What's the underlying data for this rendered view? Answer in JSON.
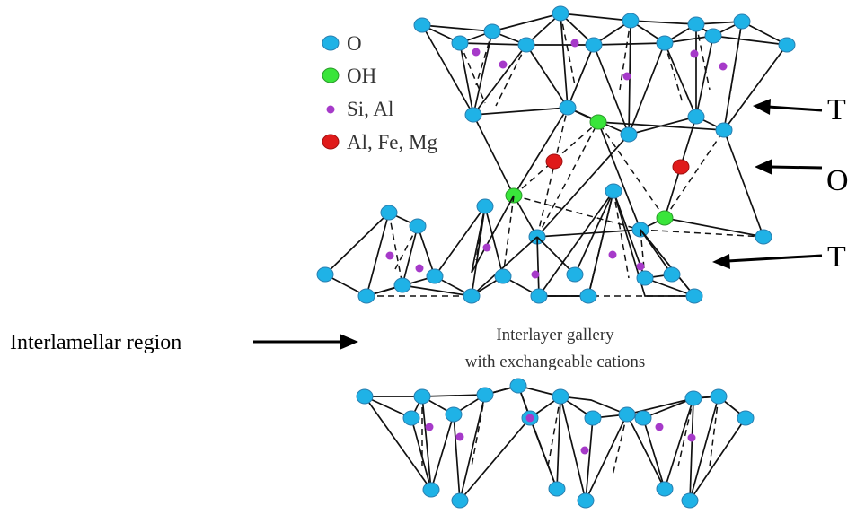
{
  "legend": {
    "items": [
      {
        "label": "O",
        "color": "#1fb2e6"
      },
      {
        "label": "OH",
        "color": "#39e53a"
      },
      {
        "label": "Si, Al",
        "color": "#a63ac9"
      },
      {
        "label": "Al, Fe, Mg",
        "color": "#e01a1a"
      }
    ]
  },
  "layer_labels": {
    "t_top": "T",
    "o_middle": "O",
    "t_bottom": "T"
  },
  "region_label": "Interlamellar region",
  "gallery_text": {
    "line1": "Interlayer gallery",
    "line2": "with exchangeable cations"
  },
  "colors": {
    "oxygen": "#1fb2e6",
    "hydroxyl": "#39e53a",
    "tetrahedral_cation": "#a63ac9",
    "octahedral_cation": "#e01a1a",
    "bond": "#111111"
  }
}
